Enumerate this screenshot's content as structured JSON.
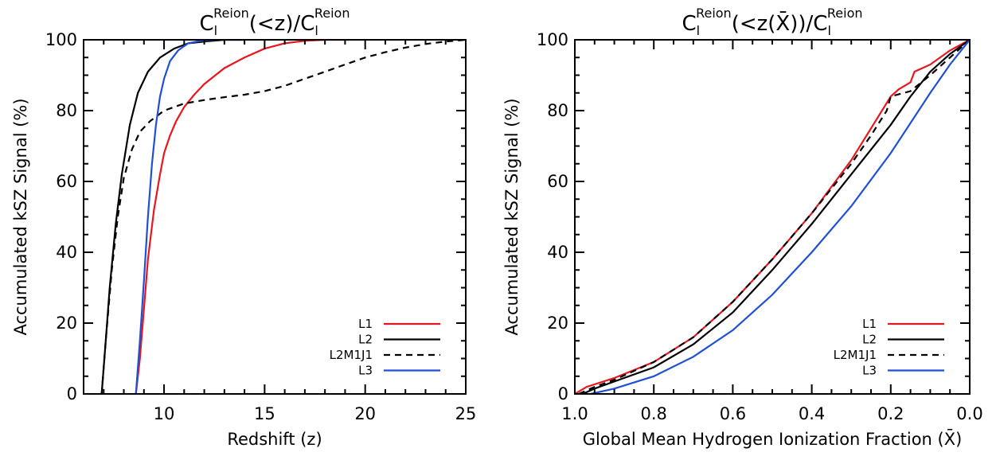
{
  "chart_data": [
    {
      "type": "line",
      "title": {
        "base": "C",
        "sub": "l",
        "sup": "Reion",
        "mid": "(<z)/C",
        "sub2": "l",
        "sup2": "Reion"
      },
      "xlabel": "Redshift (z)",
      "ylabel": "Accumulated kSZ Signal (%)",
      "xlim": [
        6,
        25
      ],
      "ylim": [
        0,
        100
      ],
      "xticks": [
        10,
        15,
        20,
        25
      ],
      "yticks": [
        0,
        20,
        40,
        60,
        80,
        100
      ],
      "legend": "bottom-right",
      "series": [
        {
          "name": "L1",
          "color": "#e8161e",
          "dash": "",
          "x": [
            8.6,
            8.8,
            9.0,
            9.2,
            9.5,
            9.8,
            10.0,
            10.3,
            10.6,
            11.0,
            11.5,
            12.0,
            13.0,
            14.0,
            15.0,
            16.0,
            17.0,
            18.0,
            19.2
          ],
          "y": [
            0,
            10,
            24,
            38,
            52,
            62,
            68,
            73,
            77,
            81,
            84.5,
            87.5,
            92,
            95,
            97.5,
            99,
            99.7,
            100,
            100
          ]
        },
        {
          "name": "L2",
          "color": "#000000",
          "dash": "",
          "x": [
            6.9,
            7.1,
            7.3,
            7.6,
            7.9,
            8.3,
            8.7,
            9.2,
            9.8,
            10.5,
            11.2,
            12.0,
            13.0,
            14.0
          ],
          "y": [
            0,
            15,
            30,
            48,
            62,
            76,
            85,
            91,
            95,
            97.5,
            99,
            99.5,
            100,
            100
          ]
        },
        {
          "name": "L2M1J1",
          "color": "#000000",
          "dash": "8,6",
          "x": [
            6.9,
            7.1,
            7.4,
            7.7,
            8.0,
            8.4,
            8.8,
            9.3,
            10.0,
            11.0,
            12.0,
            13.0,
            14.0,
            15.0,
            16.0,
            17.0,
            18.0,
            19.0,
            20.0,
            21.0,
            22.0,
            23.0,
            24.0,
            25.0
          ],
          "y": [
            0,
            15,
            35,
            50,
            61,
            69,
            74,
            77,
            80,
            82,
            83,
            83.8,
            84.5,
            85.5,
            87,
            89,
            91,
            93,
            95,
            96.5,
            97.8,
            98.8,
            99.5,
            100
          ]
        },
        {
          "name": "L3",
          "color": "#1f4fd6",
          "dash": "",
          "x": [
            8.6,
            8.8,
            9.0,
            9.2,
            9.4,
            9.6,
            9.8,
            10.0,
            10.3,
            10.7,
            11.2,
            11.8,
            12.5,
            13.8
          ],
          "y": [
            0,
            15,
            32,
            50,
            65,
            76,
            84,
            89,
            94,
            97,
            99,
            99.7,
            100,
            100
          ]
        }
      ]
    },
    {
      "type": "line",
      "title": {
        "base": "C",
        "sub": "l",
        "sup": "Reion",
        "mid": "(<z(X̄))/C",
        "sub2": "l",
        "sup2": "Reion"
      },
      "xlabel": "Global Mean Hydrogen Ionization Fraction (X̄)",
      "ylabel": "Accumulated kSZ Signal (%)",
      "xlim": [
        1.0,
        0.0
      ],
      "ylim": [
        0,
        100
      ],
      "xticks": [
        1.0,
        0.8,
        0.6,
        0.4,
        0.2,
        0.0
      ],
      "xticklabels": [
        "1.0",
        "0.8",
        "0.6",
        "0.4",
        "0.2",
        "0.0"
      ],
      "yticks": [
        0,
        20,
        40,
        60,
        80,
        100
      ],
      "legend": "bottom-right",
      "series": [
        {
          "name": "L1",
          "color": "#e8161e",
          "dash": "",
          "x": [
            1.0,
            0.97,
            0.9,
            0.8,
            0.7,
            0.6,
            0.5,
            0.4,
            0.3,
            0.25,
            0.2,
            0.18,
            0.15,
            0.14,
            0.1,
            0.05,
            0.0
          ],
          "y": [
            0,
            2,
            4.5,
            9,
            16,
            26,
            38,
            51,
            66,
            75,
            84,
            86,
            88,
            91,
            93,
            97,
            100
          ]
        },
        {
          "name": "L2",
          "color": "#000000",
          "dash": "",
          "x": [
            0.98,
            0.95,
            0.9,
            0.8,
            0.7,
            0.6,
            0.5,
            0.4,
            0.3,
            0.2,
            0.15,
            0.1,
            0.05,
            0.0
          ],
          "y": [
            0,
            1.5,
            3.5,
            7.5,
            14,
            23,
            35,
            48,
            62,
            76,
            84,
            91,
            96,
            100
          ]
        },
        {
          "name": "L2M1J1",
          "color": "#000000",
          "dash": "8,6",
          "x": [
            0.99,
            0.95,
            0.9,
            0.8,
            0.7,
            0.6,
            0.5,
            0.4,
            0.3,
            0.25,
            0.21,
            0.2,
            0.15,
            0.1,
            0.05,
            0.0
          ],
          "y": [
            0,
            2,
            4,
            9,
            16,
            26,
            38,
            51,
            65,
            73,
            80,
            84,
            85.5,
            90,
            95,
            100
          ]
        },
        {
          "name": "L3",
          "color": "#1f4fd6",
          "dash": "",
          "x": [
            0.96,
            0.9,
            0.8,
            0.7,
            0.6,
            0.5,
            0.4,
            0.3,
            0.2,
            0.1,
            0.05,
            0.0
          ],
          "y": [
            0,
            1.5,
            5,
            10.5,
            18,
            28,
            40,
            53,
            68,
            85,
            93,
            100
          ]
        }
      ]
    }
  ]
}
